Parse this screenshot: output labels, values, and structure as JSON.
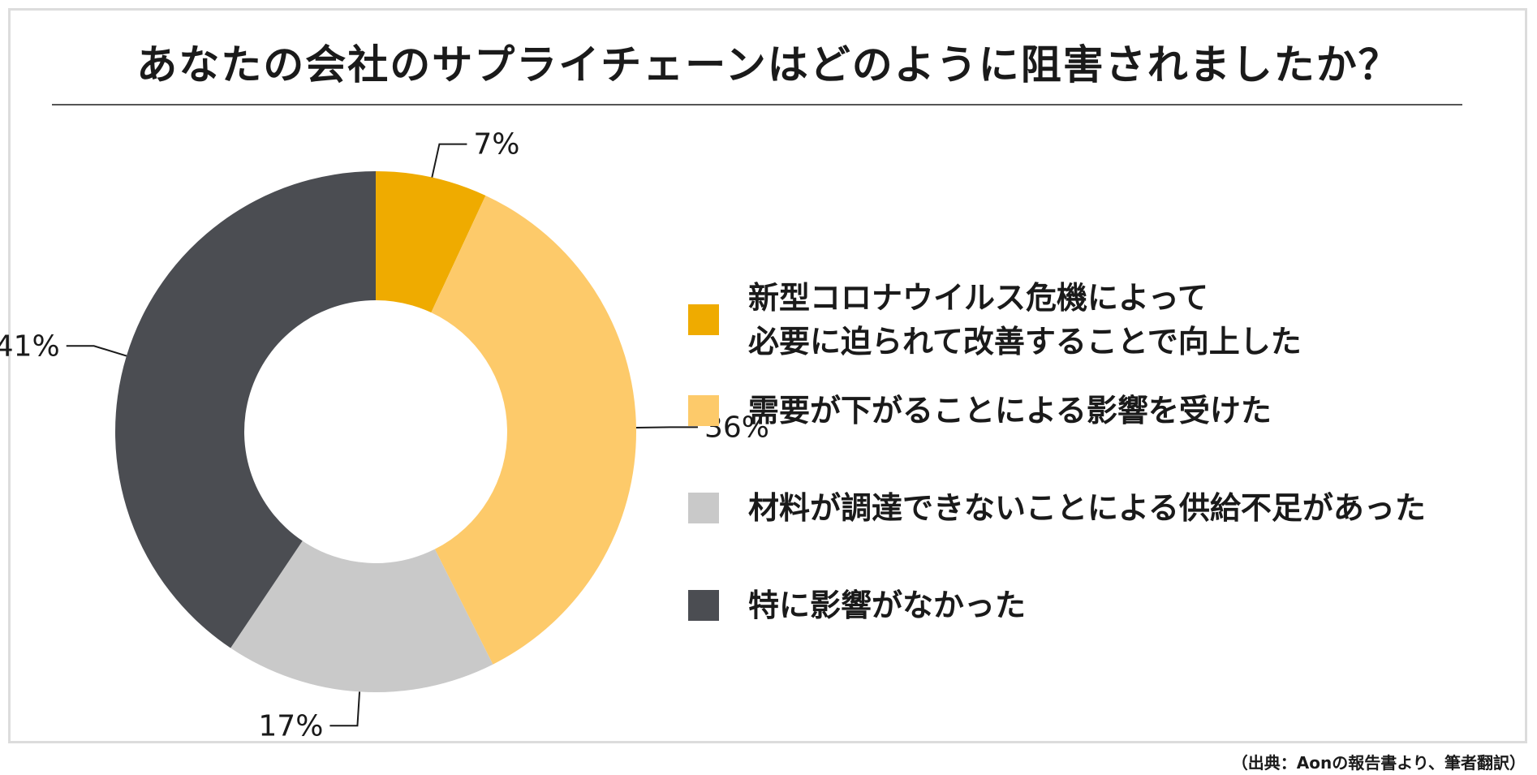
{
  "chart_data": {
    "type": "pie",
    "title": "あなたの会社のサプライチェーンはどのように阻害されましたか？",
    "donut": true,
    "categories": [
      "新型コロナウイルス危機によって\n必要に迫られて改善することで向上した",
      "需要が下がることによる影響を受けた",
      "材料が調達できないことによる供給不足があった",
      "特に影響がなかった"
    ],
    "values": [
      7,
      36,
      17,
      41
    ],
    "value_labels": [
      "7%",
      "36%",
      "17%",
      "41%"
    ],
    "colors": [
      "#efab00",
      "#fdca6a",
      "#c9c9c9",
      "#4b4d52"
    ],
    "legend_position": "right"
  },
  "source_note": "（出典：Aonの報告書より、筆者翻訳）"
}
